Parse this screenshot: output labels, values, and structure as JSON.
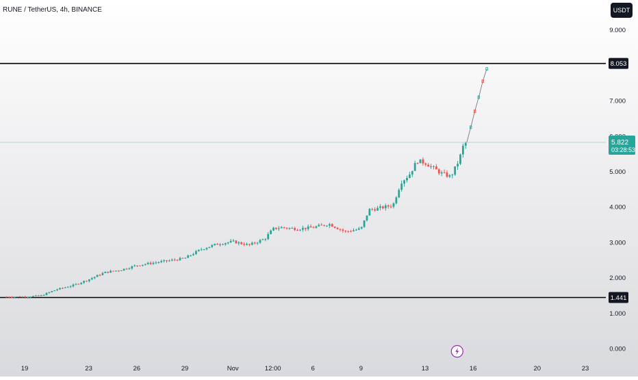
{
  "header": {
    "title": "RUNE / TetherUS, 4h, BINANCE",
    "currency_label": "USDT"
  },
  "colors": {
    "up": "#26a69a",
    "down": "#ef5350",
    "axis_text": "#131722",
    "level_line": "#000000",
    "price_line": "#9bcfca",
    "event_icon": "#9c27b0"
  },
  "chart_data": {
    "type": "candlestick",
    "symbol": "RUNE / TetherUS",
    "interval": "4h",
    "exchange": "BINANCE",
    "ylim": [
      -0.1,
      9.4
    ],
    "y_ticks": [
      {
        "value": 9.0,
        "label": "9.000"
      },
      {
        "value": 7.0,
        "label": "7.000"
      },
      {
        "value": 6.0,
        "label": "6.000"
      },
      {
        "value": 5.0,
        "label": "5.000"
      },
      {
        "value": 4.0,
        "label": "4.000"
      },
      {
        "value": 3.0,
        "label": "3.000"
      },
      {
        "value": 2.0,
        "label": "2.000"
      },
      {
        "value": 1.0,
        "label": "1.000"
      },
      {
        "value": 0.0,
        "label": "0.000"
      }
    ],
    "x_ticks": [
      {
        "label": "19",
        "day": 0
      },
      {
        "label": "23",
        "day": 4
      },
      {
        "label": "26",
        "day": 7
      },
      {
        "label": "29",
        "day": 10
      },
      {
        "label": "Nov",
        "day": 13
      },
      {
        "label": "12:00",
        "day": 15.5
      },
      {
        "label": "6",
        "day": 18
      },
      {
        "label": "9",
        "day": 21
      },
      {
        "label": "13",
        "day": 25
      },
      {
        "label": "16",
        "day": 28
      },
      {
        "label": "20",
        "day": 32
      },
      {
        "label": "23",
        "day": 35
      }
    ],
    "horizontal_levels": [
      {
        "value": 8.053,
        "label": "8.053"
      },
      {
        "value": 1.441,
        "label": "1.441"
      }
    ],
    "current_price": {
      "value": 5.822,
      "label": "5.822",
      "countdown": "03:28:53"
    },
    "event_marker": {
      "day": 27.0,
      "value": -0.08,
      "icon": "lightning-bolt-icon"
    },
    "anchors": [
      {
        "day": -1.3,
        "value": 1.46
      },
      {
        "day": 0,
        "value": 1.46
      },
      {
        "day": 1,
        "value": 1.49
      },
      {
        "day": 2,
        "value": 1.67
      },
      {
        "day": 3,
        "value": 1.78
      },
      {
        "day": 4,
        "value": 1.95
      },
      {
        "day": 5,
        "value": 2.15
      },
      {
        "day": 6,
        "value": 2.22
      },
      {
        "day": 7,
        "value": 2.35
      },
      {
        "day": 8,
        "value": 2.42
      },
      {
        "day": 9,
        "value": 2.48
      },
      {
        "day": 10,
        "value": 2.55
      },
      {
        "day": 11,
        "value": 2.8
      },
      {
        "day": 12,
        "value": 2.95
      },
      {
        "day": 13,
        "value": 3.02
      },
      {
        "day": 14,
        "value": 2.92
      },
      {
        "day": 15,
        "value": 3.1
      },
      {
        "day": 15.5,
        "value": 3.38
      },
      {
        "day": 16,
        "value": 3.42
      },
      {
        "day": 17,
        "value": 3.38
      },
      {
        "day": 18,
        "value": 3.42
      },
      {
        "day": 19,
        "value": 3.52
      },
      {
        "day": 20,
        "value": 3.3
      },
      {
        "day": 21,
        "value": 3.38
      },
      {
        "day": 21.5,
        "value": 3.92
      },
      {
        "day": 22,
        "value": 3.95
      },
      {
        "day": 23,
        "value": 4.05
      },
      {
        "day": 23.5,
        "value": 4.7
      },
      {
        "day": 24,
        "value": 4.9
      },
      {
        "day": 24.5,
        "value": 5.3
      },
      {
        "day": 25,
        "value": 5.25
      },
      {
        "day": 26,
        "value": 4.95
      },
      {
        "day": 26.6,
        "value": 4.85
      },
      {
        "day": 27.1,
        "value": 5.3
      },
      {
        "day": 27.4,
        "value": 5.75
      },
      {
        "day": 27.6,
        "value": 5.822
      }
    ],
    "projection": [
      {
        "day": 27.6,
        "value": 5.822
      },
      {
        "day": 27.85,
        "value": 6.25
      },
      {
        "day": 28.1,
        "value": 6.7
      },
      {
        "day": 28.35,
        "value": 7.1
      },
      {
        "day": 28.6,
        "value": 7.55
      },
      {
        "day": 28.85,
        "value": 7.9
      }
    ]
  }
}
